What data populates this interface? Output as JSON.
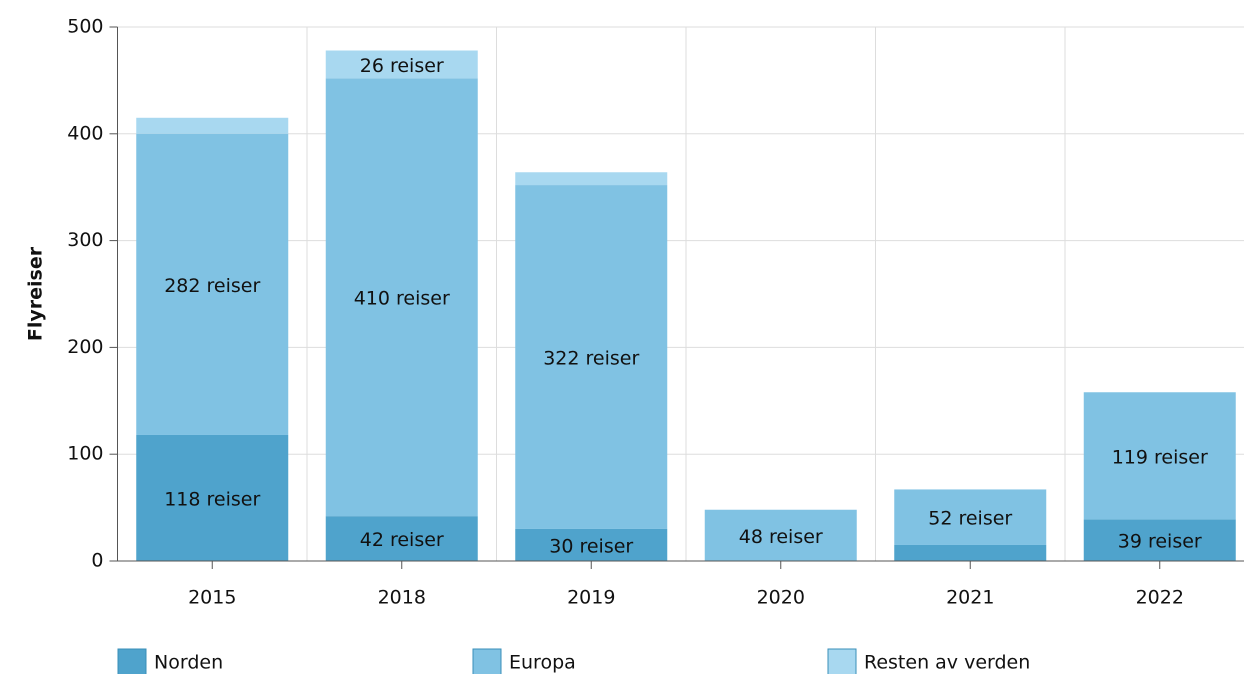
{
  "chart_data": {
    "type": "stacked_bar",
    "y_label": "Flyreiser",
    "categories": [
      "2015",
      "2018",
      "2019",
      "2020",
      "2021",
      "2022"
    ],
    "series": [
      {
        "name": "Norden",
        "color": "#4fa3cc",
        "values": [
          118,
          42,
          30,
          0,
          15,
          39
        ],
        "value_labels": [
          "118 reiser",
          "42 reiser",
          "30 reiser",
          null,
          null,
          "39 reiser"
        ]
      },
      {
        "name": "Europa",
        "color": "#80c2e3",
        "values": [
          282,
          410,
          322,
          48,
          52,
          119
        ],
        "value_labels": [
          "282 reiser",
          "410 reiser",
          "322 reiser",
          "48 reiser",
          "52 reiser",
          "119 reiser"
        ]
      },
      {
        "name": "Resten av verden",
        "color": "#a8d8f0",
        "values": [
          15,
          26,
          12,
          0,
          0,
          0
        ],
        "value_labels": [
          null,
          "26 reiser",
          null,
          null,
          null,
          null
        ]
      }
    ],
    "ylim": [
      0,
      500
    ],
    "yticks": [
      0,
      100,
      200,
      300,
      400,
      500
    ],
    "grid": true,
    "legend": "bottom"
  }
}
